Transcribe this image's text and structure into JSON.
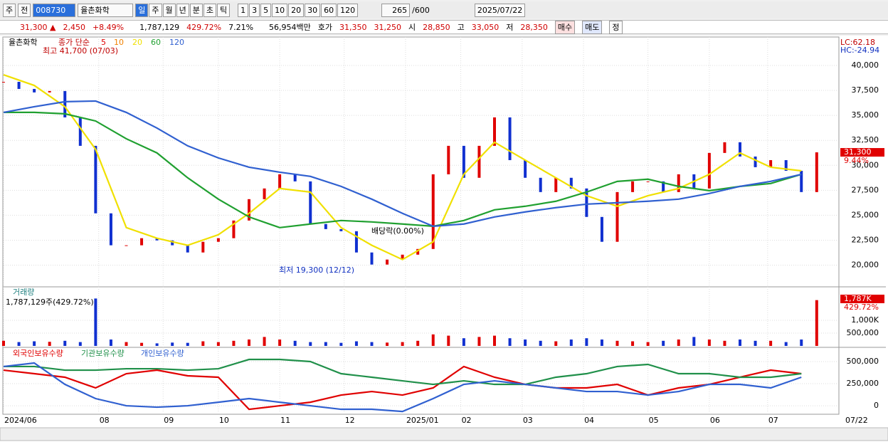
{
  "toolbar": {
    "market": "주",
    "prev": "전",
    "code": "008730",
    "name": "율촌화학",
    "periods": [
      "일",
      "주",
      "월",
      "년",
      "분",
      "초",
      "틱"
    ],
    "intervals": [
      "1",
      "3",
      "5",
      "10",
      "20",
      "30",
      "60",
      "120"
    ],
    "count": "265",
    "max": "/600",
    "date": "2025/07/22"
  },
  "quote": {
    "price": "31,300",
    "arrow": "▲",
    "change": "2,450",
    "rate": "+8.49%",
    "volume": "1,787,129",
    "volume_ratio": "429.72%",
    "turnover": "7.21%",
    "amount": "56,954백만",
    "bid_label": "호가",
    "ask": "31,350",
    "bid": "31,250",
    "open_label": "시",
    "open": "28,850",
    "high_label": "고",
    "high": "33,050",
    "low_label": "저",
    "low": "28,350",
    "buy": "매수",
    "sell": "매도",
    "fix": "정"
  },
  "chart_data": [
    {
      "type": "candlestick",
      "title": "율촌화학",
      "legend_label": "종가 단순",
      "x": [
        0,
        5,
        10,
        15,
        20,
        25,
        30,
        35,
        40,
        45,
        50,
        55,
        60,
        65,
        70,
        75,
        80,
        85,
        90,
        95,
        100,
        105,
        110,
        115,
        120,
        125,
        130,
        135,
        140,
        145,
        150,
        155,
        160,
        165,
        170,
        175,
        180,
        185,
        190,
        195,
        200,
        205,
        210,
        215,
        220,
        225,
        230,
        235,
        240,
        245,
        250,
        255,
        260,
        265
      ],
      "values": [
        38360,
        37650,
        37300,
        37440,
        34800,
        31950,
        25190,
        21990,
        21990,
        22700,
        22480,
        21990,
        21270,
        22340,
        22700,
        24470,
        26610,
        27680,
        29100,
        28390,
        24120,
        23610,
        23400,
        21270,
        20060,
        20560,
        21050,
        21620,
        29100,
        31950,
        28750,
        31950,
        34800,
        30520,
        28750,
        27320,
        28750,
        27680,
        24830,
        22340,
        27320,
        28390,
        28390,
        27320,
        29100,
        27680,
        31240,
        32310,
        30880,
        29810,
        30520,
        29450,
        27320,
        31300
      ],
      "ma_x": [
        0,
        10,
        20,
        30,
        40,
        50,
        60,
        70,
        80,
        90,
        100,
        110,
        120,
        130,
        140,
        150,
        160,
        170,
        180,
        190,
        200,
        210,
        220,
        230,
        240,
        250,
        260
      ],
      "ma_series": [
        {
          "name": "5",
          "color": "#e00000"
        },
        {
          "name": "10",
          "color": "#f08000"
        },
        {
          "name": "20",
          "color": "#f0e000",
          "values": [
            39070,
            38000,
            35870,
            31600,
            23760,
            22700,
            21990,
            23050,
            25190,
            27680,
            27320,
            23760,
            21990,
            20560,
            22340,
            29100,
            32310,
            30520,
            28750,
            26960,
            25900,
            26960,
            27680,
            29100,
            31240,
            29810,
            29450
          ]
        },
        {
          "name": "60",
          "color": "#20a030",
          "values": [
            35300,
            35300,
            35160,
            34440,
            32660,
            31240,
            28750,
            26610,
            24830,
            23760,
            24120,
            24470,
            24330,
            24120,
            23900,
            24470,
            25540,
            25900,
            26400,
            27320,
            28390,
            28610,
            27890,
            27460,
            27890,
            28180,
            29100
          ]
        },
        {
          "name": "120",
          "color": "#3060d0",
          "values": [
            35300,
            35870,
            36370,
            36440,
            35300,
            33730,
            31950,
            30740,
            29810,
            29310,
            28890,
            27890,
            26610,
            25190,
            23900,
            24120,
            24830,
            25330,
            25760,
            26110,
            26250,
            26400,
            26610,
            27180,
            27890,
            28390,
            29100
          ]
        }
      ],
      "xlim": [
        0,
        272
      ],
      "xticks": [
        {
          "value": 0,
          "label": "2024/06"
        },
        {
          "value": 31,
          "label": "08"
        },
        {
          "value": 52,
          "label": "09"
        },
        {
          "value": 70,
          "label": "10"
        },
        {
          "value": 90,
          "label": "11"
        },
        {
          "value": 111,
          "label": "12"
        },
        {
          "value": 131,
          "label": "2025/01"
        },
        {
          "value": 149,
          "label": "02"
        },
        {
          "value": 169,
          "label": "03"
        },
        {
          "value": 189,
          "label": "04"
        },
        {
          "value": 210,
          "label": "05"
        },
        {
          "value": 230,
          "label": "06"
        },
        {
          "value": 249,
          "label": "07"
        }
      ],
      "current_date": "07/22",
      "ylim": [
        17900,
        42850
      ],
      "yticks": [
        {
          "value": 20000,
          "label": "20,000"
        },
        {
          "value": 22500,
          "label": "22,500"
        },
        {
          "value": 25000,
          "label": "25,000"
        },
        {
          "value": 27500,
          "label": "27,500"
        },
        {
          "value": 30000,
          "label": "30,000"
        },
        {
          "value": 32500,
          "label": "32,500"
        },
        {
          "value": 35000,
          "label": "35,000"
        },
        {
          "value": 37500,
          "label": "37,500"
        },
        {
          "value": 40000,
          "label": "40,000"
        }
      ],
      "annotations": [
        "최고 41,700 (07/03)",
        "최저 19,300 (12/12)",
        "배당락(0.00%)"
      ],
      "lc": "LC:62.18",
      "hc": "HC:-24.94",
      "last_label": "31,300",
      "last_rate": "9.44%",
      "grid": true
    },
    {
      "type": "bar",
      "title": "거래량",
      "subtitle": "1,787,129주(429.72%)",
      "values": [
        200000,
        150000,
        180000,
        160000,
        200000,
        150000,
        1850000,
        250000,
        150000,
        120000,
        100000,
        130000,
        120000,
        180000,
        150000,
        200000,
        250000,
        350000,
        250000,
        200000,
        150000,
        150000,
        120000,
        180000,
        150000,
        130000,
        150000,
        200000,
        450000,
        400000,
        300000,
        350000,
        400000,
        300000,
        250000,
        200000,
        180000,
        250000,
        300000,
        250000,
        200000,
        180000,
        150000,
        200000,
        250000,
        350000,
        250000,
        200000,
        250000,
        200000,
        200000,
        150000,
        250000,
        1787129
      ],
      "ylim": [
        0,
        2250000
      ],
      "yticks": [
        {
          "value": 500000,
          "label": "500,000"
        },
        {
          "value": 1000000,
          "label": "1,000K"
        }
      ],
      "last_label": "1,787K",
      "last_rate": "429.72%",
      "up_color": "#e00000",
      "down_color": "#1030d0"
    },
    {
      "type": "line",
      "series": [
        {
          "name": "외국인보유수량",
          "color": "#e00000",
          "values": [
            403000,
            363000,
            323000,
            202000,
            363000,
            403000,
            339000,
            323000,
            -40000,
            0,
            40000,
            121000,
            161000,
            121000,
            202000,
            444000,
            323000,
            242000,
            202000,
            202000,
            242000,
            121000,
            202000,
            242000,
            323000,
            403000,
            363000
          ]
        },
        {
          "name": "기관보유수량",
          "color": "#20904a",
          "values": [
            444000,
            444000,
            403000,
            403000,
            419000,
            419000,
            403000,
            419000,
            524000,
            524000,
            500000,
            363000,
            323000,
            282000,
            242000,
            282000,
            242000,
            242000,
            323000,
            363000,
            444000,
            468000,
            363000,
            363000,
            323000,
            323000,
            363000
          ]
        },
        {
          "name": "개인보유수량",
          "color": "#3060d0",
          "values": [
            444000,
            484000,
            242000,
            81000,
            0,
            -16000,
            0,
            40000,
            81000,
            40000,
            0,
            -40000,
            -40000,
            -65000,
            81000,
            242000,
            282000,
            242000,
            202000,
            161000,
            161000,
            121000,
            161000,
            242000,
            242000,
            202000,
            323000
          ]
        }
      ],
      "ylim": [
        -80000,
        637000
      ],
      "yticks": [
        0,
        {
          "value": 250000,
          "label": "250,000"
        },
        {
          "value": 500000,
          "label": "500,000"
        }
      ]
    }
  ]
}
